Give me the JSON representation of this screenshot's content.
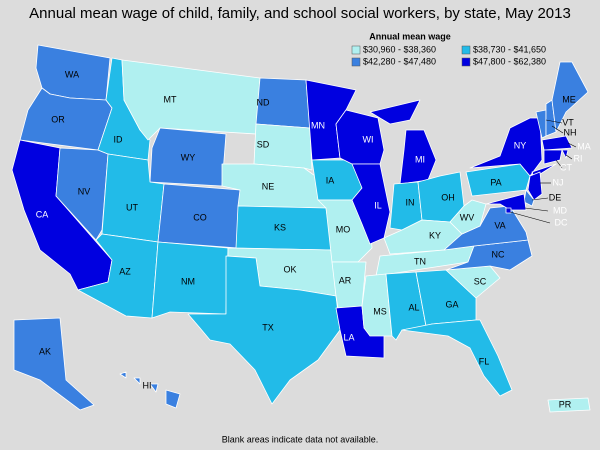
{
  "title": "Annual mean wage of child, family, and school social workers, by state, May 2013",
  "legend": {
    "title": "Annual mean wage",
    "items": [
      {
        "label": "$30,960 - $38,360",
        "color": "#b0f0f0"
      },
      {
        "label": "$38,730 - $41,650",
        "color": "#22bbe8"
      },
      {
        "label": "$42,280 - $47,480",
        "color": "#3a80e0"
      },
      {
        "label": "$47,800 - $62,380",
        "color": "#0000e0"
      }
    ]
  },
  "states": [
    {
      "abbr": "WA",
      "color": "#3a80e0"
    },
    {
      "abbr": "OR",
      "color": "#3a80e0"
    },
    {
      "abbr": "CA",
      "color": "#0000e0"
    },
    {
      "abbr": "NV",
      "color": "#3a80e0"
    },
    {
      "abbr": "ID",
      "color": "#22bbe8"
    },
    {
      "abbr": "MT",
      "color": "#b0f0f0"
    },
    {
      "abbr": "WY",
      "color": "#3a80e0"
    },
    {
      "abbr": "UT",
      "color": "#22bbe8"
    },
    {
      "abbr": "AZ",
      "color": "#22bbe8"
    },
    {
      "abbr": "CO",
      "color": "#3a80e0"
    },
    {
      "abbr": "NM",
      "color": "#22bbe8"
    },
    {
      "abbr": "ND",
      "color": "#3a80e0"
    },
    {
      "abbr": "SD",
      "color": "#b0f0f0"
    },
    {
      "abbr": "NE",
      "color": "#b0f0f0"
    },
    {
      "abbr": "KS",
      "color": "#22bbe8"
    },
    {
      "abbr": "OK",
      "color": "#b0f0f0"
    },
    {
      "abbr": "TX",
      "color": "#22bbe8"
    },
    {
      "abbr": "MN",
      "color": "#0000e0"
    },
    {
      "abbr": "IA",
      "color": "#22bbe8"
    },
    {
      "abbr": "MO",
      "color": "#b0f0f0"
    },
    {
      "abbr": "AR",
      "color": "#b0f0f0"
    },
    {
      "abbr": "LA",
      "color": "#0000e0"
    },
    {
      "abbr": "WI",
      "color": "#0000e0"
    },
    {
      "abbr": "IL",
      "color": "#0000e0"
    },
    {
      "abbr": "MI",
      "color": "#0000e0"
    },
    {
      "abbr": "IN",
      "color": "#22bbe8"
    },
    {
      "abbr": "OH",
      "color": "#22bbe8"
    },
    {
      "abbr": "KY",
      "color": "#b0f0f0"
    },
    {
      "abbr": "TN",
      "color": "#b0f0f0"
    },
    {
      "abbr": "MS",
      "color": "#b0f0f0"
    },
    {
      "abbr": "AL",
      "color": "#22bbe8"
    },
    {
      "abbr": "GA",
      "color": "#22bbe8"
    },
    {
      "abbr": "FL",
      "color": "#22bbe8"
    },
    {
      "abbr": "SC",
      "color": "#b0f0f0"
    },
    {
      "abbr": "NC",
      "color": "#3a80e0"
    },
    {
      "abbr": "VA",
      "color": "#3a80e0"
    },
    {
      "abbr": "WV",
      "color": "#b0f0f0"
    },
    {
      "abbr": "PA",
      "color": "#22bbe8"
    },
    {
      "abbr": "NY",
      "color": "#0000e0"
    },
    {
      "abbr": "VT",
      "color": "#3a80e0"
    },
    {
      "abbr": "NH",
      "color": "#3a80e0"
    },
    {
      "abbr": "ME",
      "color": "#3a80e0"
    },
    {
      "abbr": "MA",
      "color": "#0000e0"
    },
    {
      "abbr": "RI",
      "color": "#0000e0"
    },
    {
      "abbr": "CT",
      "color": "#0000e0"
    },
    {
      "abbr": "NJ",
      "color": "#0000e0"
    },
    {
      "abbr": "DE",
      "color": "#3a80e0"
    },
    {
      "abbr": "MD",
      "color": "#0000e0"
    },
    {
      "abbr": "DC",
      "color": "#0000e0"
    },
    {
      "abbr": "AK",
      "color": "#3a80e0"
    },
    {
      "abbr": "HI",
      "color": "#3a80e0"
    },
    {
      "abbr": "PR",
      "color": "#b0f0f0"
    }
  ],
  "note": "Blank areas indicate data not available."
}
